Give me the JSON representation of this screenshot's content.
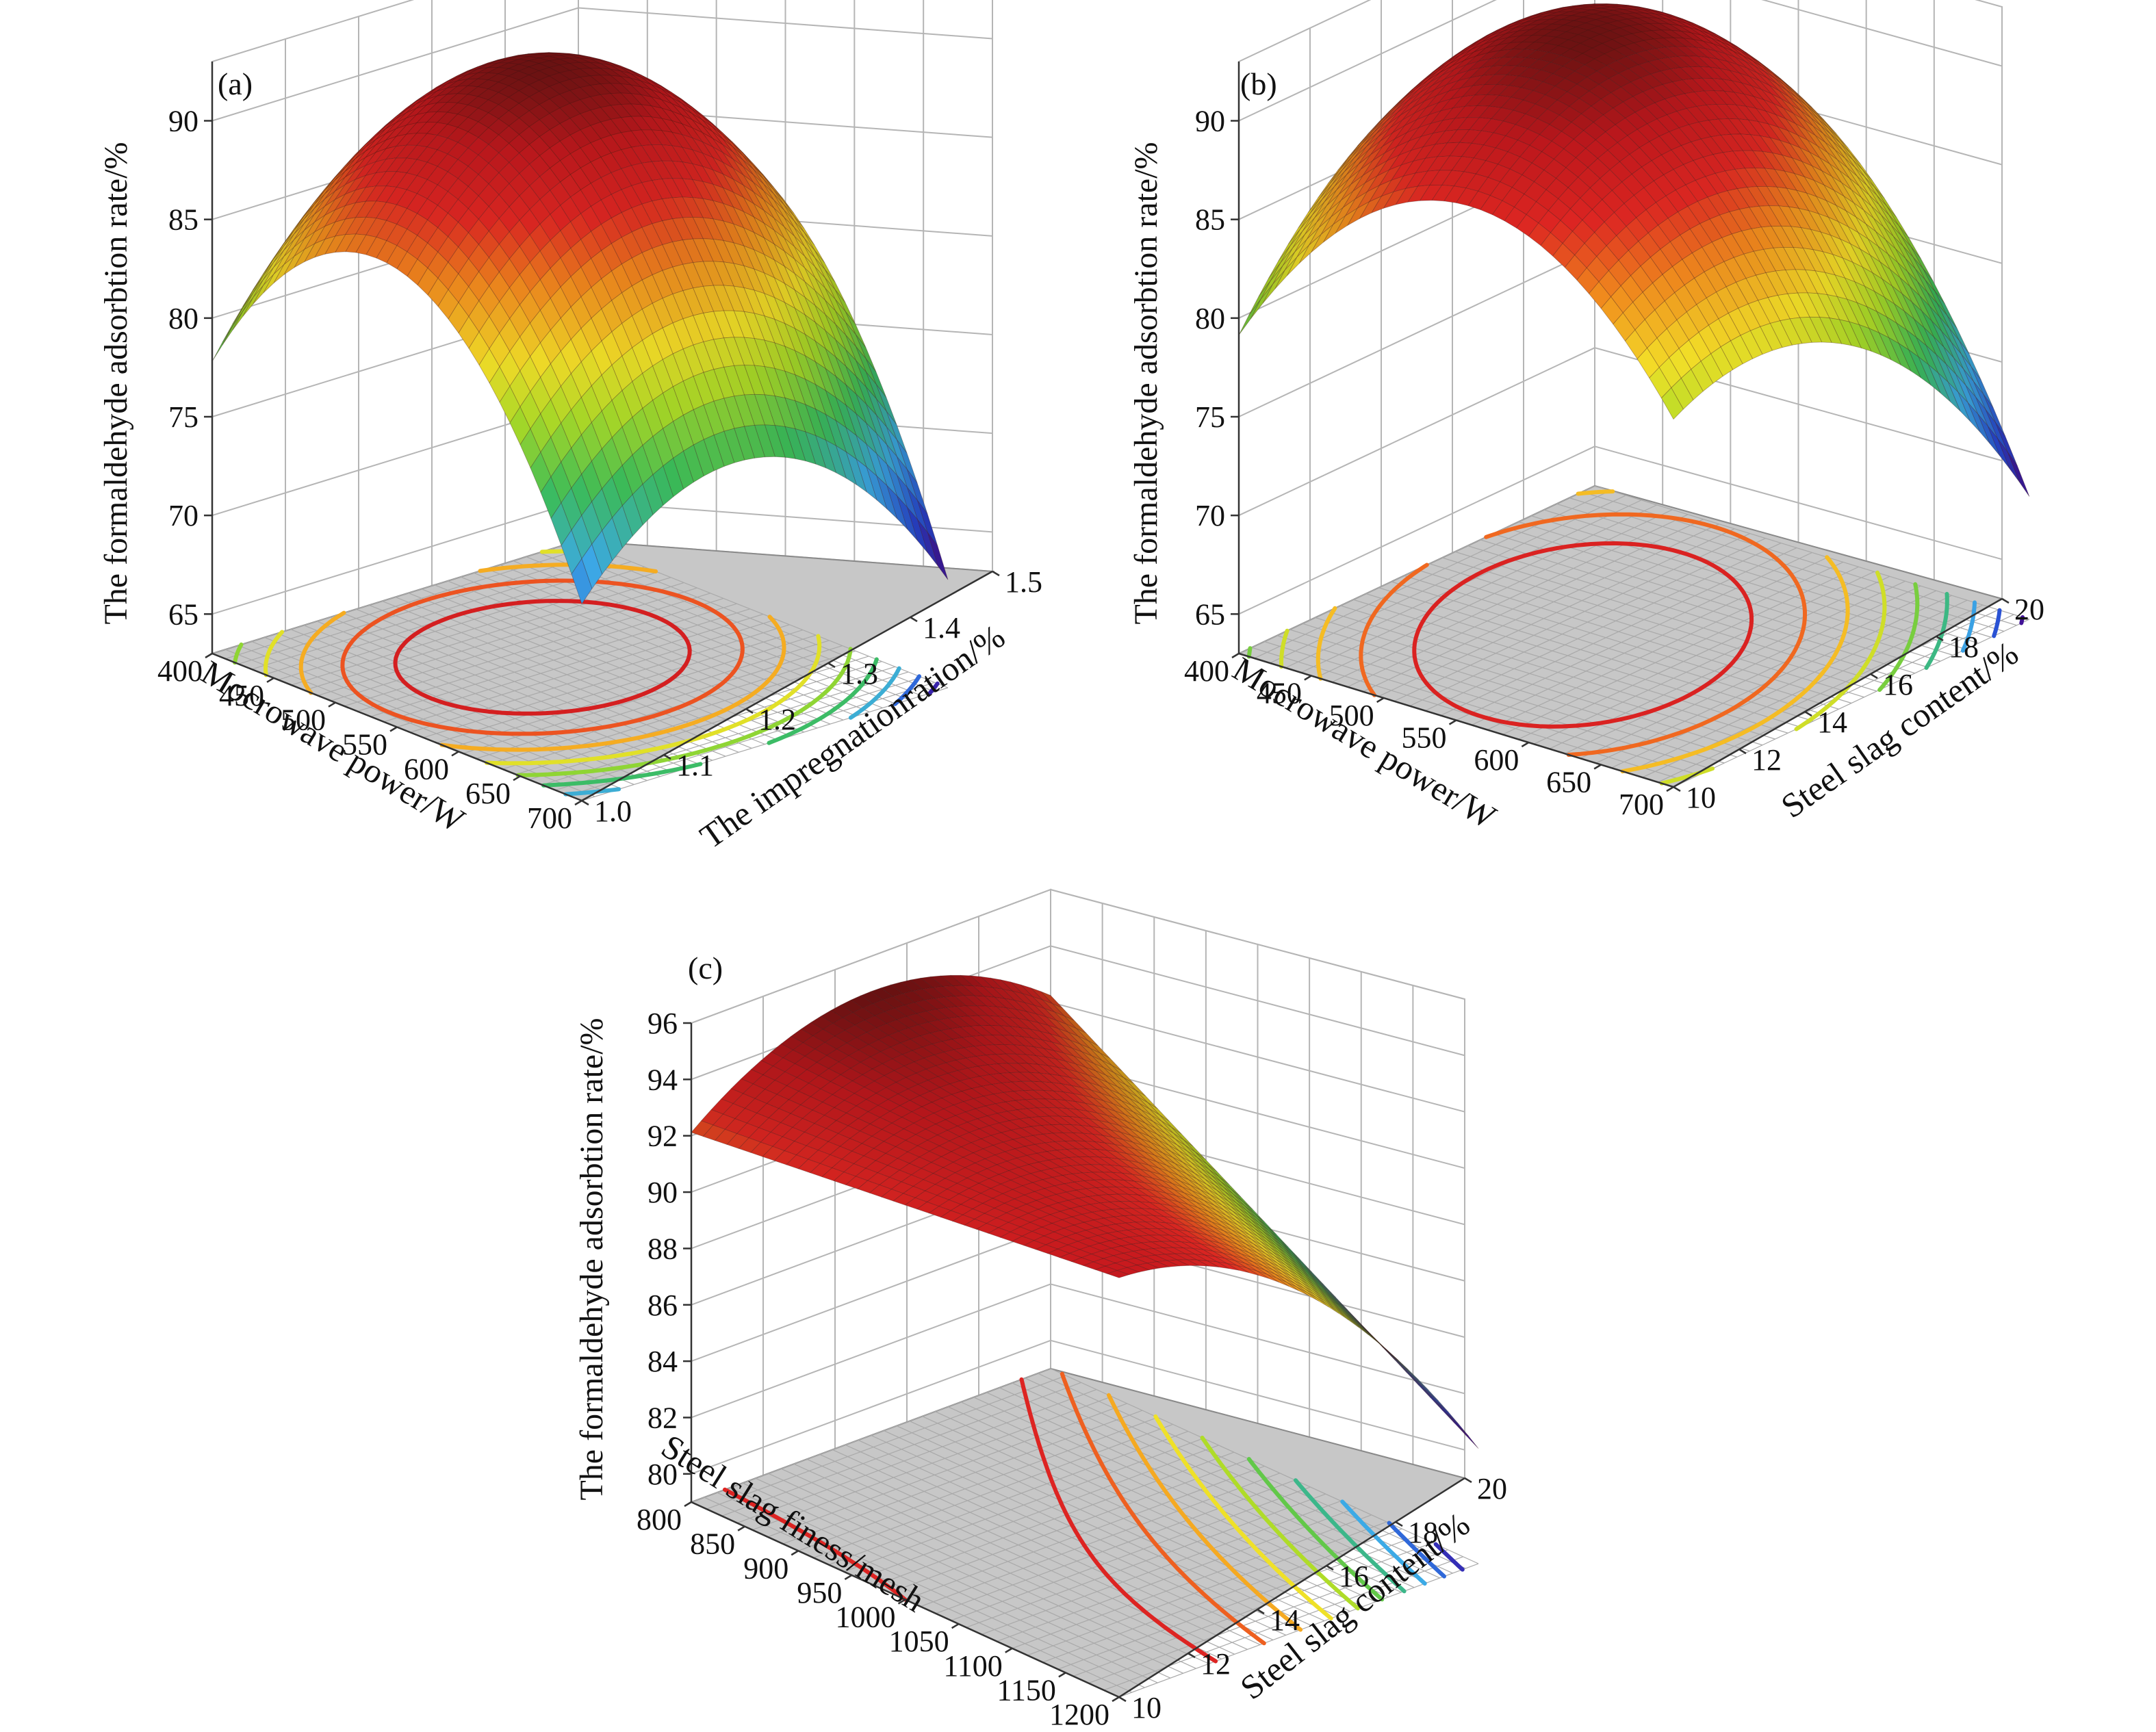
{
  "figure": {
    "panels": [
      {
        "id": "a",
        "label": "(a)"
      },
      {
        "id": "b",
        "label": "(b)"
      },
      {
        "id": "c",
        "label": "(c)"
      }
    ]
  },
  "chart_data": [
    {
      "type": "surface3d",
      "panel_label": "(a)",
      "zlabel": "The formaldehyde adsorbtion rate/%",
      "xlabel": "Mocrowave power/W",
      "ylabel": "The impregnationration/%",
      "x_ticks": [
        400,
        450,
        500,
        550,
        600,
        650,
        700
      ],
      "y_ticks": [
        1.0,
        1.1,
        1.2,
        1.3,
        1.4,
        1.5
      ],
      "z_ticks": [
        65,
        70,
        75,
        80,
        85,
        90
      ],
      "xlim": [
        400,
        700
      ],
      "ylim": [
        1.0,
        1.5
      ],
      "zlim": [
        63,
        93
      ],
      "contour_levels": [
        70,
        72.5,
        75,
        77.5,
        80,
        82.5,
        85,
        87.5,
        90
      ],
      "surface_points": [
        {
          "x": 400,
          "y": 1.0,
          "z": 78
        },
        {
          "x": 400,
          "y": 1.25,
          "z": 86
        },
        {
          "x": 400,
          "y": 1.5,
          "z": 80
        },
        {
          "x": 550,
          "y": 1.0,
          "z": 86
        },
        {
          "x": 550,
          "y": 1.25,
          "z": 92
        },
        {
          "x": 550,
          "y": 1.5,
          "z": 86
        },
        {
          "x": 700,
          "y": 1.0,
          "z": 73
        },
        {
          "x": 700,
          "y": 1.25,
          "z": 78
        },
        {
          "x": 700,
          "y": 1.5,
          "z": 68
        }
      ],
      "grid": true
    },
    {
      "type": "surface3d",
      "panel_label": "(b)",
      "zlabel": "The formaldehyde adsorbtion rate/%",
      "xlabel": "Mocrowave power/W",
      "ylabel": "Steel slag content/%",
      "x_ticks": [
        400,
        450,
        500,
        550,
        600,
        650,
        700
      ],
      "y_ticks": [
        10,
        12,
        14,
        16,
        18,
        20
      ],
      "z_ticks": [
        65,
        70,
        75,
        80,
        85,
        90
      ],
      "xlim": [
        400,
        700
      ],
      "ylim": [
        10,
        20
      ],
      "zlim": [
        63,
        93
      ],
      "contour_levels": [
        70,
        72.5,
        75,
        77.5,
        80,
        82.5,
        85,
        87.5,
        90
      ],
      "surface_points": [
        {
          "x": 400,
          "y": 10,
          "z": 81
        },
        {
          "x": 400,
          "y": 14,
          "z": 86
        },
        {
          "x": 400,
          "y": 20,
          "z": 83
        },
        {
          "x": 550,
          "y": 10,
          "z": 87
        },
        {
          "x": 550,
          "y": 14,
          "z": 92
        },
        {
          "x": 550,
          "y": 20,
          "z": 89
        },
        {
          "x": 700,
          "y": 10,
          "z": 82
        },
        {
          "x": 700,
          "y": 14,
          "z": 84
        },
        {
          "x": 700,
          "y": 20,
          "z": 67
        }
      ],
      "grid": true
    },
    {
      "type": "surface3d",
      "panel_label": "(c)",
      "zlabel": "The formaldehyde adsorbtion rate/%",
      "xlabel": "Steel slag finess/mesh",
      "ylabel": "Steel slag content/%",
      "x_ticks": [
        800,
        850,
        900,
        950,
        1000,
        1050,
        1100,
        1150,
        1200
      ],
      "y_ticks": [
        10,
        12,
        14,
        16,
        18,
        20
      ],
      "z_ticks": [
        80,
        82,
        84,
        86,
        88,
        90,
        92,
        94,
        96
      ],
      "xlim": [
        800,
        1200
      ],
      "ylim": [
        10,
        20
      ],
      "zlim": [
        79,
        96
      ],
      "contour_levels": [
        83,
        84,
        85,
        86,
        87,
        88,
        89,
        90,
        91,
        92,
        93
      ],
      "surface_points": [
        {
          "x": 800,
          "y": 10,
          "z": 92
        },
        {
          "x": 800,
          "y": 14,
          "z": 95
        },
        {
          "x": 800,
          "y": 20,
          "z": 92
        },
        {
          "x": 1000,
          "y": 10,
          "z": 93
        },
        {
          "x": 1000,
          "y": 14,
          "z": 93
        },
        {
          "x": 1000,
          "y": 20,
          "z": 88
        },
        {
          "x": 1200,
          "y": 10,
          "z": 94
        },
        {
          "x": 1200,
          "y": 14,
          "z": 92
        },
        {
          "x": 1200,
          "y": 20,
          "z": 83
        }
      ],
      "grid": true
    }
  ]
}
